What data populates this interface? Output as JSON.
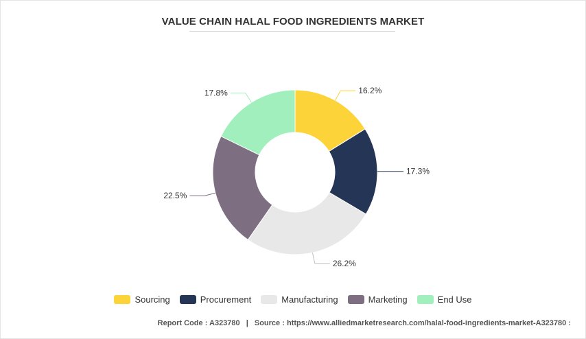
{
  "title": "VALUE CHAIN HALAL FOOD INGREDIENTS MARKET",
  "chart_data": {
    "type": "pie",
    "variant": "donut",
    "categories": [
      "Sourcing",
      "Procurement",
      "Manufacturing",
      "Marketing",
      "End Use"
    ],
    "values": [
      16.2,
      17.3,
      26.2,
      22.5,
      17.8
    ],
    "labels": [
      "16.2%",
      "17.3%",
      "26.2%",
      "22.5%",
      "17.8%"
    ],
    "colors": [
      "#fdd33a",
      "#253556",
      "#e8e8e8",
      "#7d6e82",
      "#a0efbd"
    ],
    "legend_position": "bottom"
  },
  "footer": {
    "report_code": "Report Code : A323780",
    "separator": "|",
    "source": "Source : https://www.alliedmarketresearch.com/halal-food-ingredients-market-A323780 :"
  }
}
